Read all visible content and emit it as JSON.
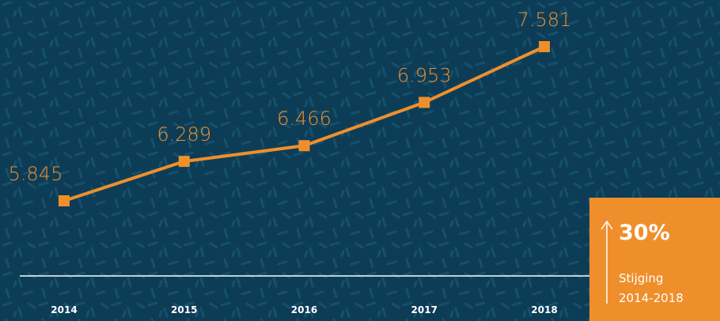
{
  "chart_data": {
    "type": "line",
    "categories": [
      "2014",
      "2015",
      "2016",
      "2017",
      "2018"
    ],
    "series": [
      {
        "name": null,
        "color": "#ef8f2c",
        "values": [
          5845,
          6289,
          6466,
          6953,
          7581
        ],
        "value_labels": [
          "5.845",
          "6.289",
          "6.466",
          "6.953",
          "7.581"
        ]
      }
    ],
    "annotations": {
      "percent": "30%",
      "label": "Stijging",
      "period": "2014-2018"
    },
    "background": "#0d3d56",
    "box_color": "#ef8f2c"
  }
}
